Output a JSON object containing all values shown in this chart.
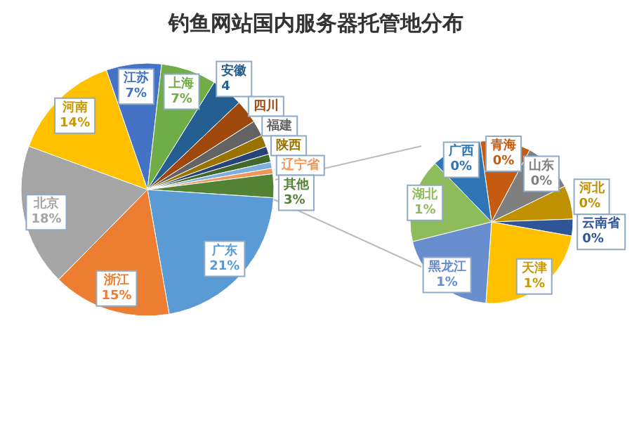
{
  "chart_data": [
    {
      "type": "pie",
      "title": "钓鱼网站国内服务器托管地分布",
      "categories": [
        "江苏",
        "上海",
        "安徽",
        "四川",
        "福建",
        "陕西",
        null,
        null,
        null,
        "辽宁省",
        "其他",
        "广东",
        "浙江",
        "北京",
        "河南"
      ],
      "values": [
        7,
        7,
        4,
        3,
        2,
        1.5,
        1,
        1,
        0.8,
        0.7,
        3,
        21,
        15,
        18,
        14
      ],
      "value_labels": [
        "7%",
        "7%",
        "4",
        null,
        null,
        null,
        null,
        null,
        null,
        null,
        "3%",
        "21%",
        "15%",
        "18%",
        "14%"
      ],
      "colors": [
        "#4472c4",
        "#70ad47",
        "#255e91",
        "#9e480e",
        "#636363",
        "#997300",
        "#264478",
        "#43682b",
        "#7cafdd",
        "#f1975a",
        "#548235",
        "#5b9bd5",
        "#ed7d31",
        "#a5a5a5",
        "#ffc000"
      ]
    },
    {
      "type": "pie",
      "categories": [
        "青海",
        "山东",
        "河北",
        "云南省",
        "天津",
        "黑龙江",
        "湖北",
        "广西"
      ],
      "values": [
        0.3,
        0.3,
        0.2,
        0.1,
        0.7,
        0.6,
        0.5,
        0.3
      ],
      "value_labels": [
        "0%",
        "0%",
        "0%",
        "0%",
        "1%",
        "1%",
        "1%",
        "0%"
      ],
      "colors": [
        "#c55a11",
        "#7f7f7f",
        "#bf9000",
        "#2f5597",
        "#ffc000",
        "#698ed0",
        "#8fbc5a",
        "#2e75b6"
      ]
    }
  ]
}
